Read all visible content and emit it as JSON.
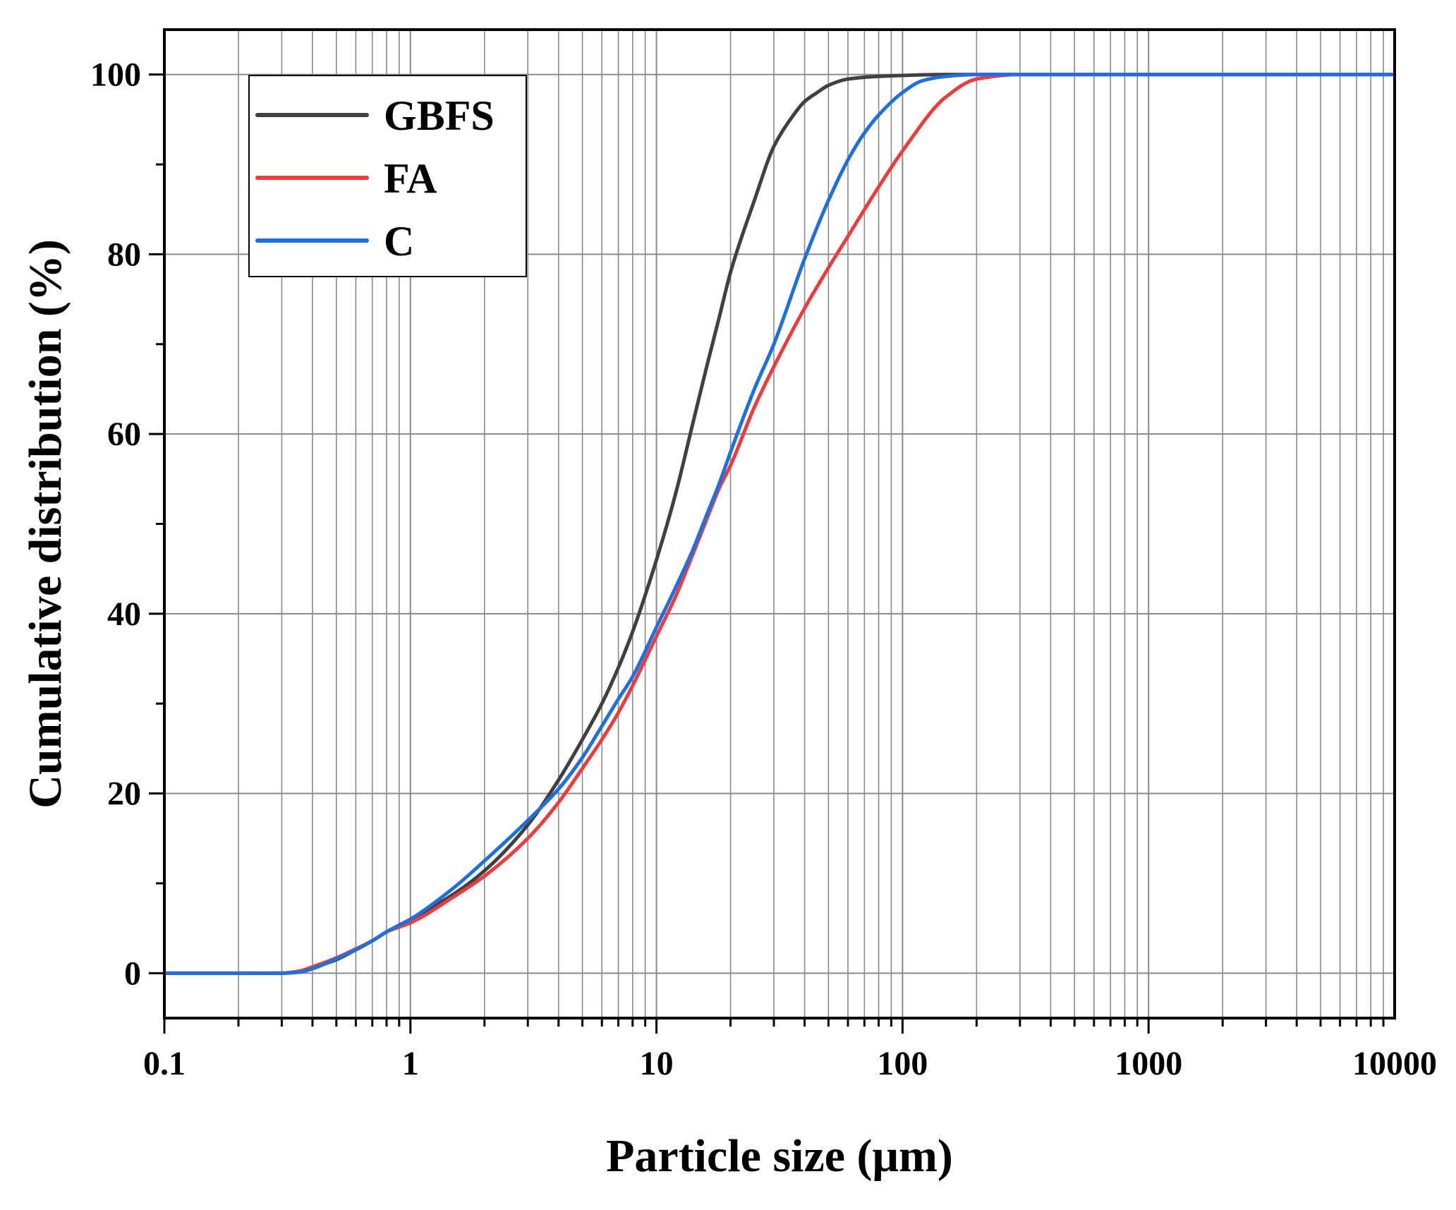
{
  "chart_data": {
    "type": "line",
    "title": "",
    "xlabel": "Particle size (μm)",
    "ylabel": "Cumulative distribution (%)",
    "xscale": "log",
    "xlim": [
      0.1,
      10000
    ],
    "ylim": [
      -5,
      105
    ],
    "grid": true,
    "legend_position": "top-left",
    "x_ticks": [
      {
        "value": 0.1,
        "label": "0.1"
      },
      {
        "value": 1,
        "label": "1"
      },
      {
        "value": 10,
        "label": "10"
      },
      {
        "value": 100,
        "label": "100"
      },
      {
        "value": 1000,
        "label": "1000"
      },
      {
        "value": 10000,
        "label": "10000"
      }
    ],
    "y_ticks": [
      {
        "value": 0,
        "label": "0"
      },
      {
        "value": 20,
        "label": "20"
      },
      {
        "value": 40,
        "label": "40"
      },
      {
        "value": 60,
        "label": "60"
      },
      {
        "value": 80,
        "label": "80"
      },
      {
        "value": 100,
        "label": "100"
      }
    ],
    "series": [
      {
        "name": "GBFS",
        "color": "#404040",
        "x": [
          0.1,
          0.2,
          0.3,
          0.35,
          0.4,
          0.5,
          0.6,
          0.7,
          0.8,
          1,
          1.5,
          2,
          3,
          4,
          5,
          6,
          7,
          8,
          10,
          12,
          14,
          16,
          18,
          20,
          25,
          30,
          35,
          40,
          45,
          50,
          60,
          80,
          100,
          150,
          200,
          300,
          1000,
          10000
        ],
        "y": [
          0,
          0,
          0,
          0.2,
          0.6,
          1.5,
          2.6,
          3.6,
          4.6,
          6,
          8.8,
          11.4,
          16.5,
          21.5,
          26,
          30,
          34,
          38,
          46,
          53.5,
          61,
          67.5,
          73,
          78,
          86,
          92,
          95,
          97,
          98,
          98.8,
          99.5,
          99.8,
          99.9,
          100,
          100,
          100,
          100,
          100
        ]
      },
      {
        "name": "FA",
        "color": "#ef3b3b",
        "x": [
          0.1,
          0.2,
          0.3,
          0.35,
          0.4,
          0.5,
          0.6,
          0.7,
          0.8,
          1,
          1.5,
          2,
          3,
          4,
          5,
          6,
          7,
          8,
          10,
          12,
          14,
          16,
          18,
          20,
          25,
          30,
          40,
          50,
          60,
          80,
          100,
          150,
          200,
          300,
          1000,
          10000
        ],
        "y": [
          0,
          0,
          0,
          0.2,
          0.7,
          1.7,
          2.7,
          3.6,
          4.6,
          5.6,
          8.5,
          10.8,
          15,
          19,
          22.8,
          26,
          29,
          32,
          37.5,
          42,
          46.5,
          50.5,
          54,
          56.5,
          63,
          67.5,
          74,
          78.5,
          82,
          87.5,
          91.5,
          97.5,
          99.5,
          100,
          100,
          100
        ]
      },
      {
        "name": "C",
        "color": "#1e6fe0",
        "x": [
          0.1,
          0.2,
          0.3,
          0.35,
          0.4,
          0.5,
          0.6,
          0.7,
          0.8,
          1,
          1.5,
          2,
          3,
          4,
          5,
          6,
          7,
          8,
          10,
          12,
          14,
          16,
          18,
          20,
          25,
          30,
          40,
          50,
          60,
          70,
          80,
          100,
          120,
          150,
          200,
          300,
          1000,
          10000
        ],
        "y": [
          0,
          0,
          0,
          0.1,
          0.5,
          1.6,
          2.6,
          3.6,
          4.6,
          6,
          9.5,
          12.5,
          17,
          20.5,
          24,
          27.5,
          30.5,
          33,
          38.5,
          43,
          47,
          51,
          54.5,
          58,
          65,
          70,
          79.5,
          86,
          90.5,
          93.5,
          95.5,
          98,
          99.3,
          99.8,
          100,
          100,
          100,
          100
        ]
      }
    ]
  }
}
